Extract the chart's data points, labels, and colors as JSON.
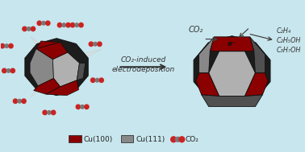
{
  "bg_color": "#c8e6ed",
  "cu100_color": "#8b0000",
  "cu111_light": "#b0b0b0",
  "cu111_mid": "#888888",
  "cu111_dark": "#505050",
  "body_dark": "#1c1c1c",
  "edge_color": "#111111",
  "co2_red": "#cc2222",
  "co2_gray": "#777777",
  "legend_cu100": "Cu(100)",
  "legend_cu111": "Cu(111)",
  "legend_co2": "CO₂",
  "figsize": [
    3.78,
    1.89
  ],
  "dpi": 100
}
